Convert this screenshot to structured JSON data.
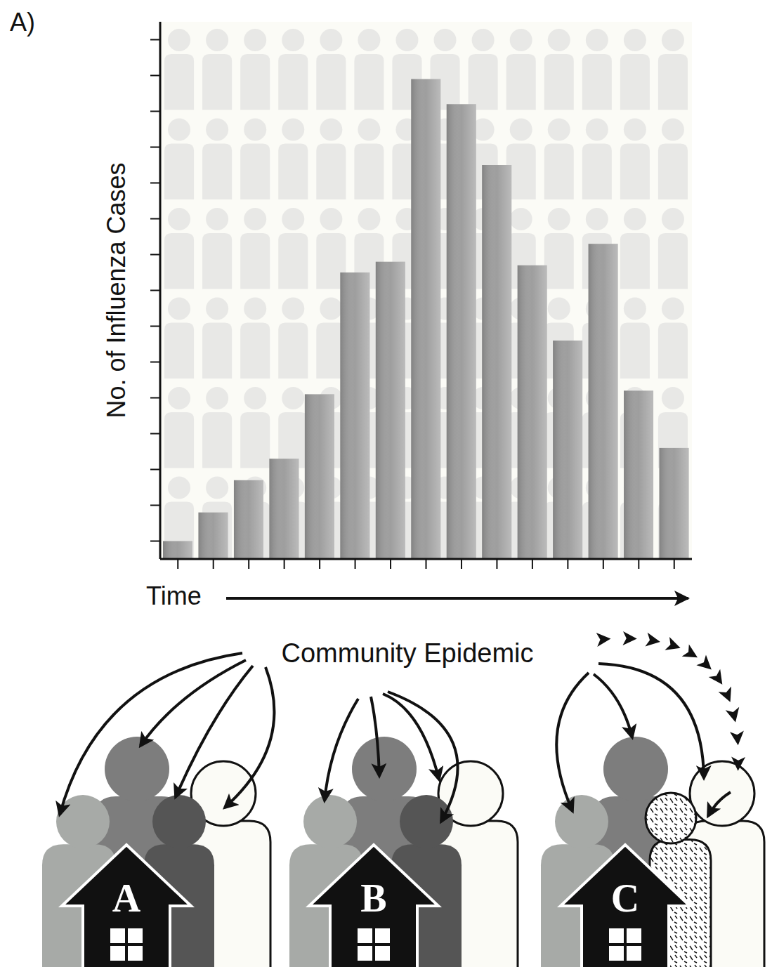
{
  "panel_label": "A)",
  "chart_data": {
    "type": "bar",
    "categories": [
      null,
      null,
      null,
      null,
      null,
      null,
      null,
      null,
      null,
      null,
      null,
      null,
      null,
      null,
      null
    ],
    "values": [
      0.5,
      1.3,
      2.2,
      2.8,
      4.6,
      8,
      8.3,
      13.4,
      12.7,
      11,
      8.2,
      6.1,
      8.8,
      4.7,
      3.1
    ],
    "color": "#9e9e9e",
    "ylim": [
      0,
      15
    ],
    "yticks": [
      0.5,
      1.5,
      2.5,
      3.5,
      4.5,
      5.5,
      6.5,
      7.5,
      8.5,
      9.5,
      10.5,
      11.5,
      12.5,
      13.5,
      14.5
    ],
    "y_label": "No. of Influenza Cases",
    "x_label": "Time",
    "tick_labels": false,
    "grid": false
  },
  "diagram": {
    "source": "Community Epidemic",
    "households": [
      {
        "label": "A"
      },
      {
        "label": "B"
      },
      {
        "label": "C"
      }
    ]
  }
}
